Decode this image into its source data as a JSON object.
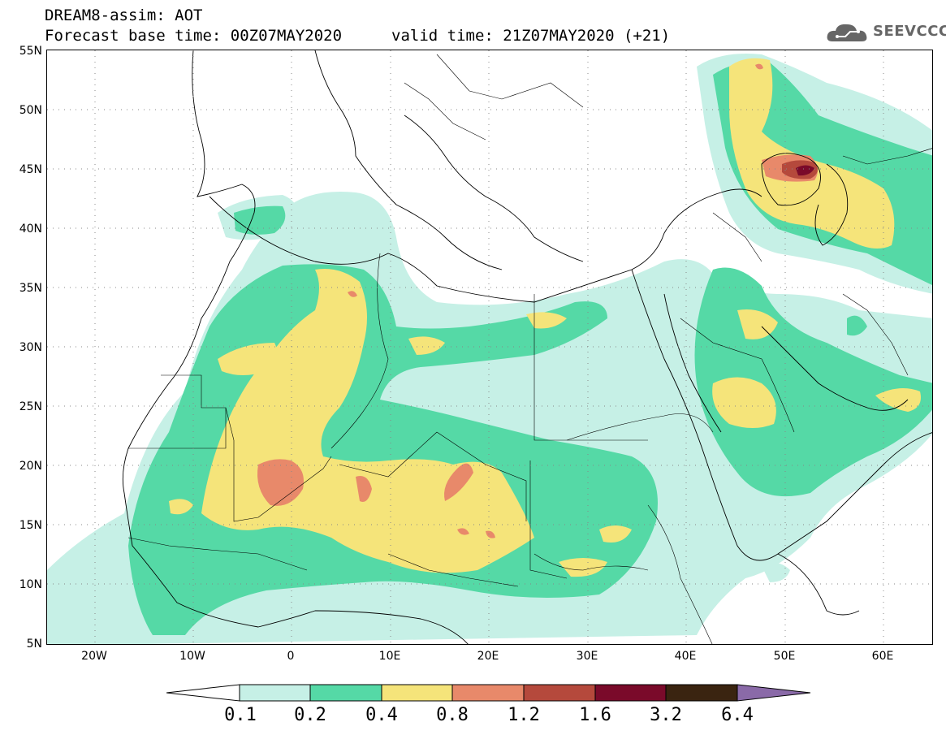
{
  "header": {
    "line1": "DREAM8-assim: AOT",
    "line2": "Forecast base time: 00Z07MAY2020",
    "line3": "valid time: 21Z07MAY2020 (+21)"
  },
  "logo": {
    "text": "SEEVCCC",
    "icon": "cloud-icon"
  },
  "map": {
    "lat_labels": [
      "55N",
      "50N",
      "45N",
      "40N",
      "35N",
      "30N",
      "25N",
      "20N",
      "15N",
      "10N",
      "5N"
    ],
    "lon_labels": [
      "20W",
      "10W",
      "0",
      "10E",
      "20E",
      "30E",
      "40E",
      "50E",
      "60E"
    ],
    "lat_range": [
      5,
      55
    ],
    "lon_range": [
      -25,
      65
    ]
  },
  "colorbar": {
    "labels": [
      "0.1",
      "0.2",
      "0.4",
      "0.8",
      "1.2",
      "1.6",
      "3.2",
      "6.4"
    ],
    "colors": [
      "#c6f0e6",
      "#55d9a6",
      "#f5e47a",
      "#e8896a",
      "#b5493c",
      "#7a0a2a",
      "#3a2410"
    ],
    "under_color": "#ffffff",
    "over_color": "#8a6aa8"
  }
}
